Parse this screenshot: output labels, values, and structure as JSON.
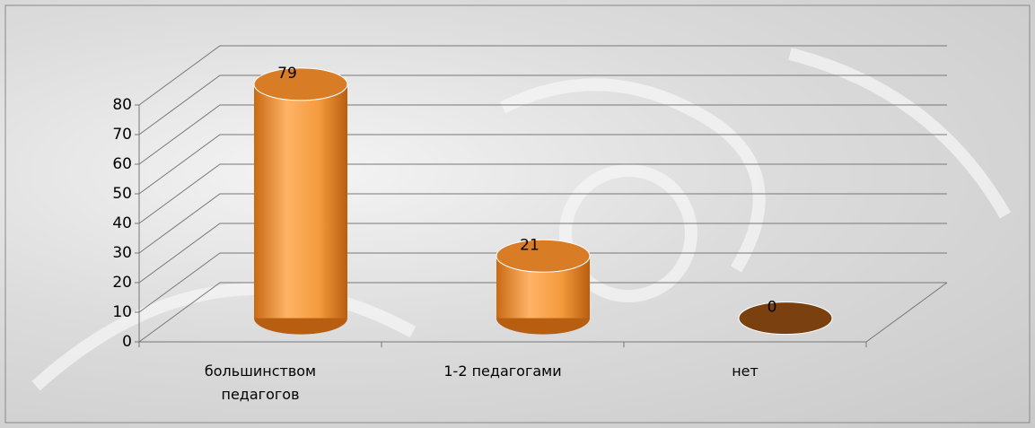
{
  "chart_data": {
    "type": "bar3d",
    "categories": [
      "большинством педагогов",
      "1-2 педагогами",
      "нет"
    ],
    "values": [
      79,
      21,
      0
    ],
    "color": "#f39a3c",
    "ylim": [
      0,
      80
    ],
    "yticks": [
      0,
      10,
      20,
      30,
      40,
      50,
      60,
      70,
      80
    ],
    "grid": true
  }
}
